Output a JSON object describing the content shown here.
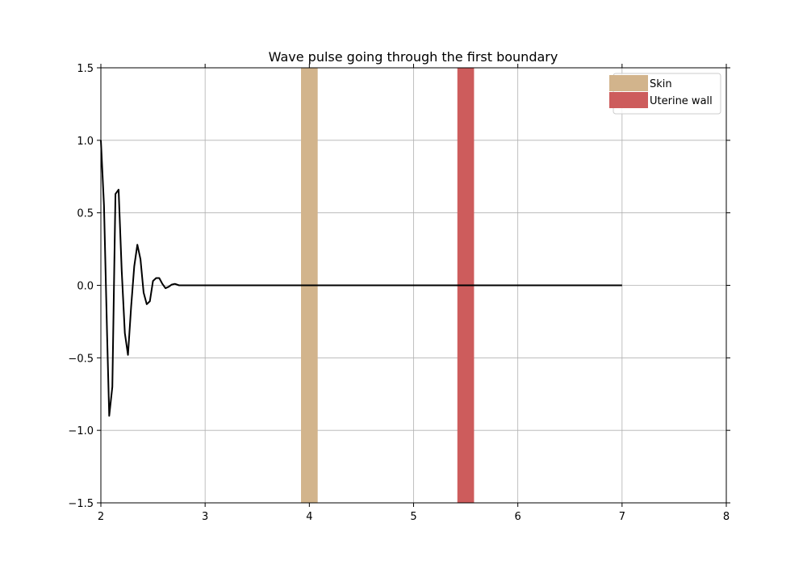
{
  "chart_data": {
    "type": "line",
    "title": "Wave pulse going through the first boundary",
    "xlabel": "",
    "ylabel": "",
    "xlim": [
      2,
      8
    ],
    "ylim": [
      -1.5,
      1.5
    ],
    "xticks": [
      2,
      3,
      4,
      5,
      6,
      7,
      8
    ],
    "yticks": [
      -1.5,
      -1.0,
      -0.5,
      0.0,
      0.5,
      1.0,
      1.5
    ],
    "xtick_labels": [
      "2",
      "3",
      "4",
      "5",
      "6",
      "7",
      "8"
    ],
    "ytick_labels": [
      "−1.5",
      "−1.0",
      "−0.5",
      "0.0",
      "0.5",
      "1.0",
      "1.5"
    ],
    "grid": true,
    "legend_position": "top-right",
    "series": [
      {
        "color": "#000000",
        "x": [
          2.0,
          2.03,
          2.06,
          2.08,
          2.11,
          2.14,
          2.17,
          2.2,
          2.23,
          2.26,
          2.29,
          2.32,
          2.35,
          2.38,
          2.41,
          2.44,
          2.47,
          2.5,
          2.53,
          2.56,
          2.59,
          2.62,
          2.65,
          2.68,
          2.71,
          2.75,
          2.8,
          2.9,
          3.5,
          4.5,
          5.5,
          6.5,
          7.0
        ],
        "y": [
          1.0,
          0.55,
          -0.35,
          -0.9,
          -0.7,
          0.63,
          0.66,
          0.1,
          -0.33,
          -0.48,
          -0.15,
          0.13,
          0.28,
          0.18,
          -0.05,
          -0.13,
          -0.11,
          0.03,
          0.05,
          0.05,
          0.01,
          -0.02,
          -0.01,
          0.005,
          0.01,
          0.0,
          0.0,
          0.0,
          0.0,
          0.0,
          0.0,
          0.0,
          0.0
        ]
      }
    ],
    "bands": [
      {
        "name": "Skin",
        "x_start": 3.92,
        "x_end": 4.08,
        "color": "#d2b48c"
      },
      {
        "name": "Uterine wall",
        "x_start": 5.42,
        "x_end": 5.58,
        "color": "#cd5c5c"
      }
    ]
  }
}
